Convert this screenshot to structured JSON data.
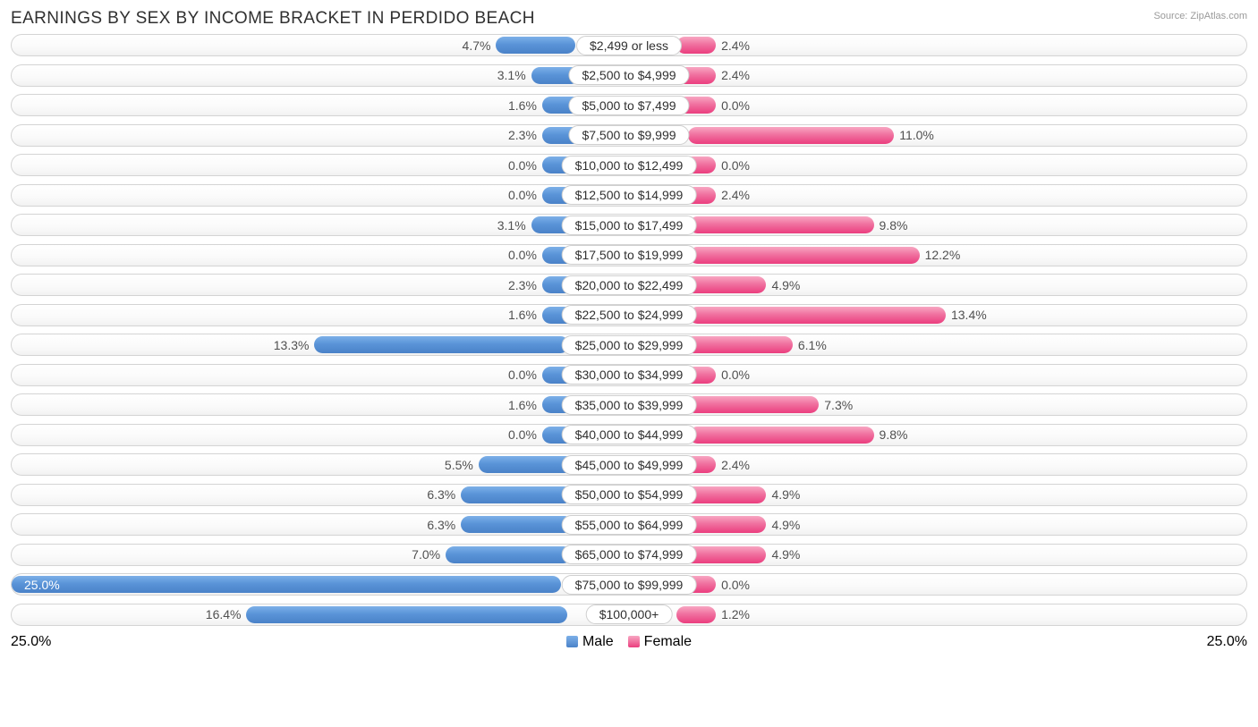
{
  "title": "EARNINGS BY SEX BY INCOME BRACKET IN PERDIDO BEACH",
  "source": "Source: ZipAtlas.com",
  "axis_max_pct": 25.0,
  "axis_left_label": "25.0%",
  "axis_right_label": "25.0%",
  "legend": {
    "male": "Male",
    "female": "Female"
  },
  "colors": {
    "male_top": "#7db0e8",
    "male_bot": "#4a82c8",
    "female_top": "#f8a6c2",
    "female_bot": "#eb3e7e",
    "row_border": "#d4d4d4",
    "text": "#505050",
    "pill_border": "#cfcfcf"
  },
  "min_bar_pct": 2.6,
  "label_half_pct": 5.6,
  "inside_threshold_pct": 22.0,
  "rows": [
    {
      "label": "$2,499 or less",
      "male": 4.7,
      "female": 2.4
    },
    {
      "label": "$2,500 to $4,999",
      "male": 3.1,
      "female": 2.4
    },
    {
      "label": "$5,000 to $7,499",
      "male": 1.6,
      "female": 0.0
    },
    {
      "label": "$7,500 to $9,999",
      "male": 2.3,
      "female": 11.0
    },
    {
      "label": "$10,000 to $12,499",
      "male": 0.0,
      "female": 0.0
    },
    {
      "label": "$12,500 to $14,999",
      "male": 0.0,
      "female": 2.4
    },
    {
      "label": "$15,000 to $17,499",
      "male": 3.1,
      "female": 9.8
    },
    {
      "label": "$17,500 to $19,999",
      "male": 0.0,
      "female": 12.2
    },
    {
      "label": "$20,000 to $22,499",
      "male": 2.3,
      "female": 4.9
    },
    {
      "label": "$22,500 to $24,999",
      "male": 1.6,
      "female": 13.4
    },
    {
      "label": "$25,000 to $29,999",
      "male": 13.3,
      "female": 6.1
    },
    {
      "label": "$30,000 to $34,999",
      "male": 0.0,
      "female": 0.0
    },
    {
      "label": "$35,000 to $39,999",
      "male": 1.6,
      "female": 7.3
    },
    {
      "label": "$40,000 to $44,999",
      "male": 0.0,
      "female": 9.8
    },
    {
      "label": "$45,000 to $49,999",
      "male": 5.5,
      "female": 2.4
    },
    {
      "label": "$50,000 to $54,999",
      "male": 6.3,
      "female": 4.9
    },
    {
      "label": "$55,000 to $64,999",
      "male": 6.3,
      "female": 4.9
    },
    {
      "label": "$65,000 to $74,999",
      "male": 7.0,
      "female": 4.9
    },
    {
      "label": "$75,000 to $99,999",
      "male": 25.0,
      "female": 0.0
    },
    {
      "label": "$100,000+",
      "male": 16.4,
      "female": 1.2
    }
  ]
}
